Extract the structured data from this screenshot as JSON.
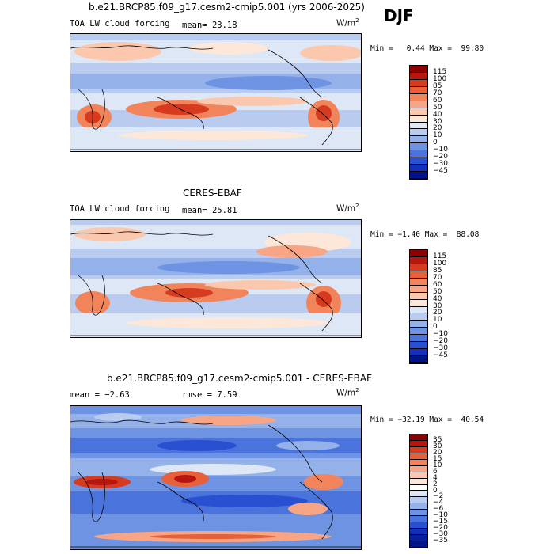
{
  "header": {
    "season": "DJF"
  },
  "panels": [
    {
      "id": "model",
      "title": "b.e21.BRCP85.f09_g17.cesm2-cmip5.001 (yrs 2006-2025)",
      "left_label": "TOA LW cloud forcing",
      "stat_label": "mean=",
      "stat_value": "23.18",
      "units": "W/m",
      "units_sup": "2",
      "min_label": "Min =",
      "min_value": "0.44",
      "max_label": "Max =",
      "max_value": "99.80"
    },
    {
      "id": "obs",
      "title": "CERES-EBAF",
      "left_label": "TOA LW cloud forcing",
      "stat_label": "mean=",
      "stat_value": "25.81",
      "units": "W/m",
      "units_sup": "2",
      "min_label": "Min =",
      "min_value": "−1.40",
      "max_label": "Max =",
      "max_value": "88.08"
    },
    {
      "id": "diff",
      "title": "b.e21.BRCP85.f09_g17.cesm2-cmip5.001 - CERES-EBAF",
      "left_label": "mean =",
      "left_value": "−2.63",
      "stat_label": "rmse =",
      "stat_value": "7.59",
      "units": "W/m",
      "units_sup": "2",
      "min_label": "Min =",
      "min_value": "−32.19",
      "max_label": "Max =",
      "max_value": "40.54"
    }
  ],
  "chart_data": [
    {
      "type": "heatmap",
      "title": "b.e21.BRCP85.f09_g17.cesm2-cmip5.001 (yrs 2006-2025)",
      "variable": "TOA LW cloud forcing",
      "units": "W/m^2",
      "mean": 23.18,
      "min": 0.44,
      "max": 99.8,
      "colorbar_levels": [
        "115",
        "100",
        "85",
        "70",
        "60",
        "50",
        "40",
        "30",
        "20",
        "10",
        "0",
        "−10",
        "−20",
        "−30",
        "−45"
      ],
      "colorbar_colors": [
        "#8b0000",
        "#b5160e",
        "#d63a1f",
        "#e8603a",
        "#f2845c",
        "#f8a585",
        "#fbc8ae",
        "#fde7d9",
        "#dde7f6",
        "#b9ccef",
        "#94b1ea",
        "#6f93e3",
        "#4a73dc",
        "#2a50d2",
        "#1430b8",
        "#001488"
      ]
    },
    {
      "type": "heatmap",
      "title": "CERES-EBAF",
      "variable": "TOA LW cloud forcing",
      "units": "W/m^2",
      "mean": 25.81,
      "min": -1.4,
      "max": 88.08,
      "colorbar_levels": [
        "115",
        "100",
        "85",
        "70",
        "60",
        "50",
        "40",
        "30",
        "20",
        "10",
        "0",
        "−10",
        "−20",
        "−30",
        "−45"
      ],
      "colorbar_colors": [
        "#8b0000",
        "#b5160e",
        "#d63a1f",
        "#e8603a",
        "#f2845c",
        "#f8a585",
        "#fbc8ae",
        "#fde7d9",
        "#dde7f6",
        "#b9ccef",
        "#94b1ea",
        "#6f93e3",
        "#4a73dc",
        "#2a50d2",
        "#1430b8",
        "#001488"
      ]
    },
    {
      "type": "heatmap",
      "title": "b.e21.BRCP85.f09_g17.cesm2-cmip5.001 - CERES-EBAF",
      "variable": "TOA LW cloud forcing difference",
      "units": "W/m^2",
      "mean": -2.63,
      "rmse": 7.59,
      "min": -32.19,
      "max": 40.54,
      "colorbar_levels": [
        "35",
        "30",
        "20",
        "15",
        "10",
        "6",
        "4",
        "2",
        "0",
        "−2",
        "−4",
        "−6",
        "−10",
        "−15",
        "−20",
        "−30",
        "−35"
      ],
      "colorbar_colors": [
        "#8b0000",
        "#b5160e",
        "#d63a1f",
        "#e8603a",
        "#f2845c",
        "#f8a585",
        "#fbc8ae",
        "#fde7d9",
        "#ffffff",
        "#dde7f6",
        "#b9ccef",
        "#94b1ea",
        "#6f93e3",
        "#4a73dc",
        "#2a50d2",
        "#1430b8",
        "#0a1e9a",
        "#001488"
      ]
    }
  ]
}
